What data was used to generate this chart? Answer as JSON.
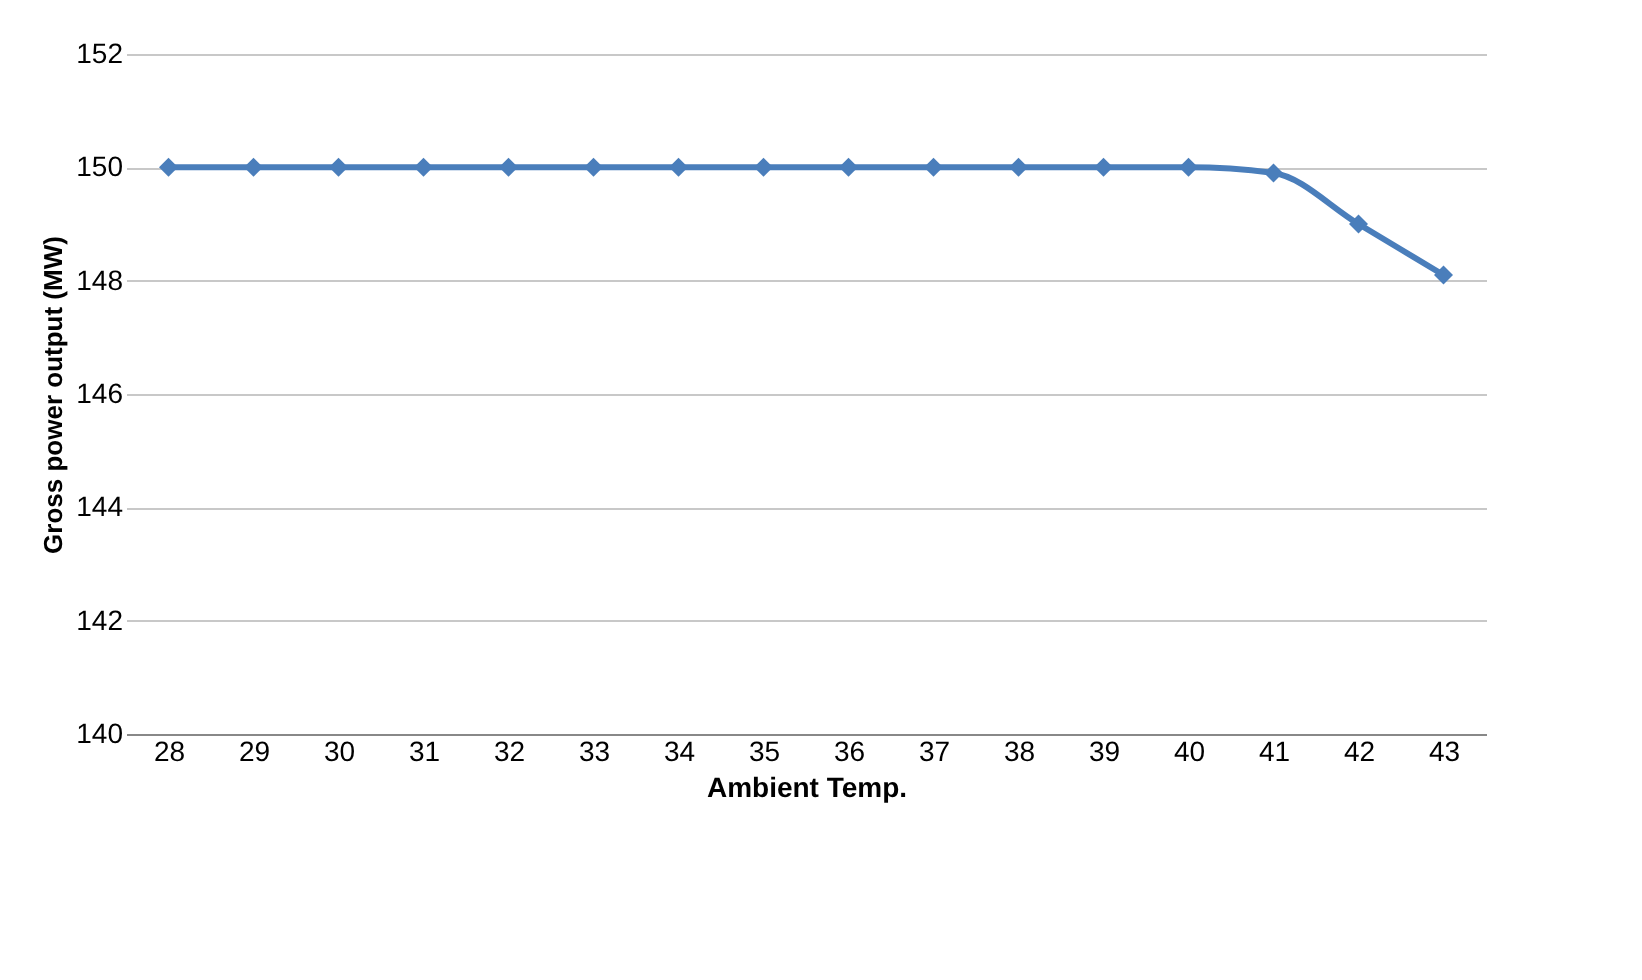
{
  "chart_data": {
    "type": "line",
    "xlabel": "Ambient Temp.",
    "ylabel": "Gross power output (MW)",
    "categories": [
      "28",
      "29",
      "30",
      "31",
      "32",
      "33",
      "34",
      "35",
      "36",
      "37",
      "38",
      "39",
      "40",
      "41",
      "42",
      "43"
    ],
    "series": [
      {
        "color": "#4a7ebb",
        "values": [
          150,
          150,
          150,
          150,
          150,
          150,
          150,
          150,
          150,
          150,
          150,
          150,
          150,
          149.9,
          149.0,
          148.1
        ]
      }
    ],
    "ylim": [
      140,
      152
    ],
    "yticks": [
      140,
      142,
      144,
      146,
      148,
      150,
      152
    ],
    "grid": "y",
    "marker": "diamond",
    "line_style": "solid"
  }
}
